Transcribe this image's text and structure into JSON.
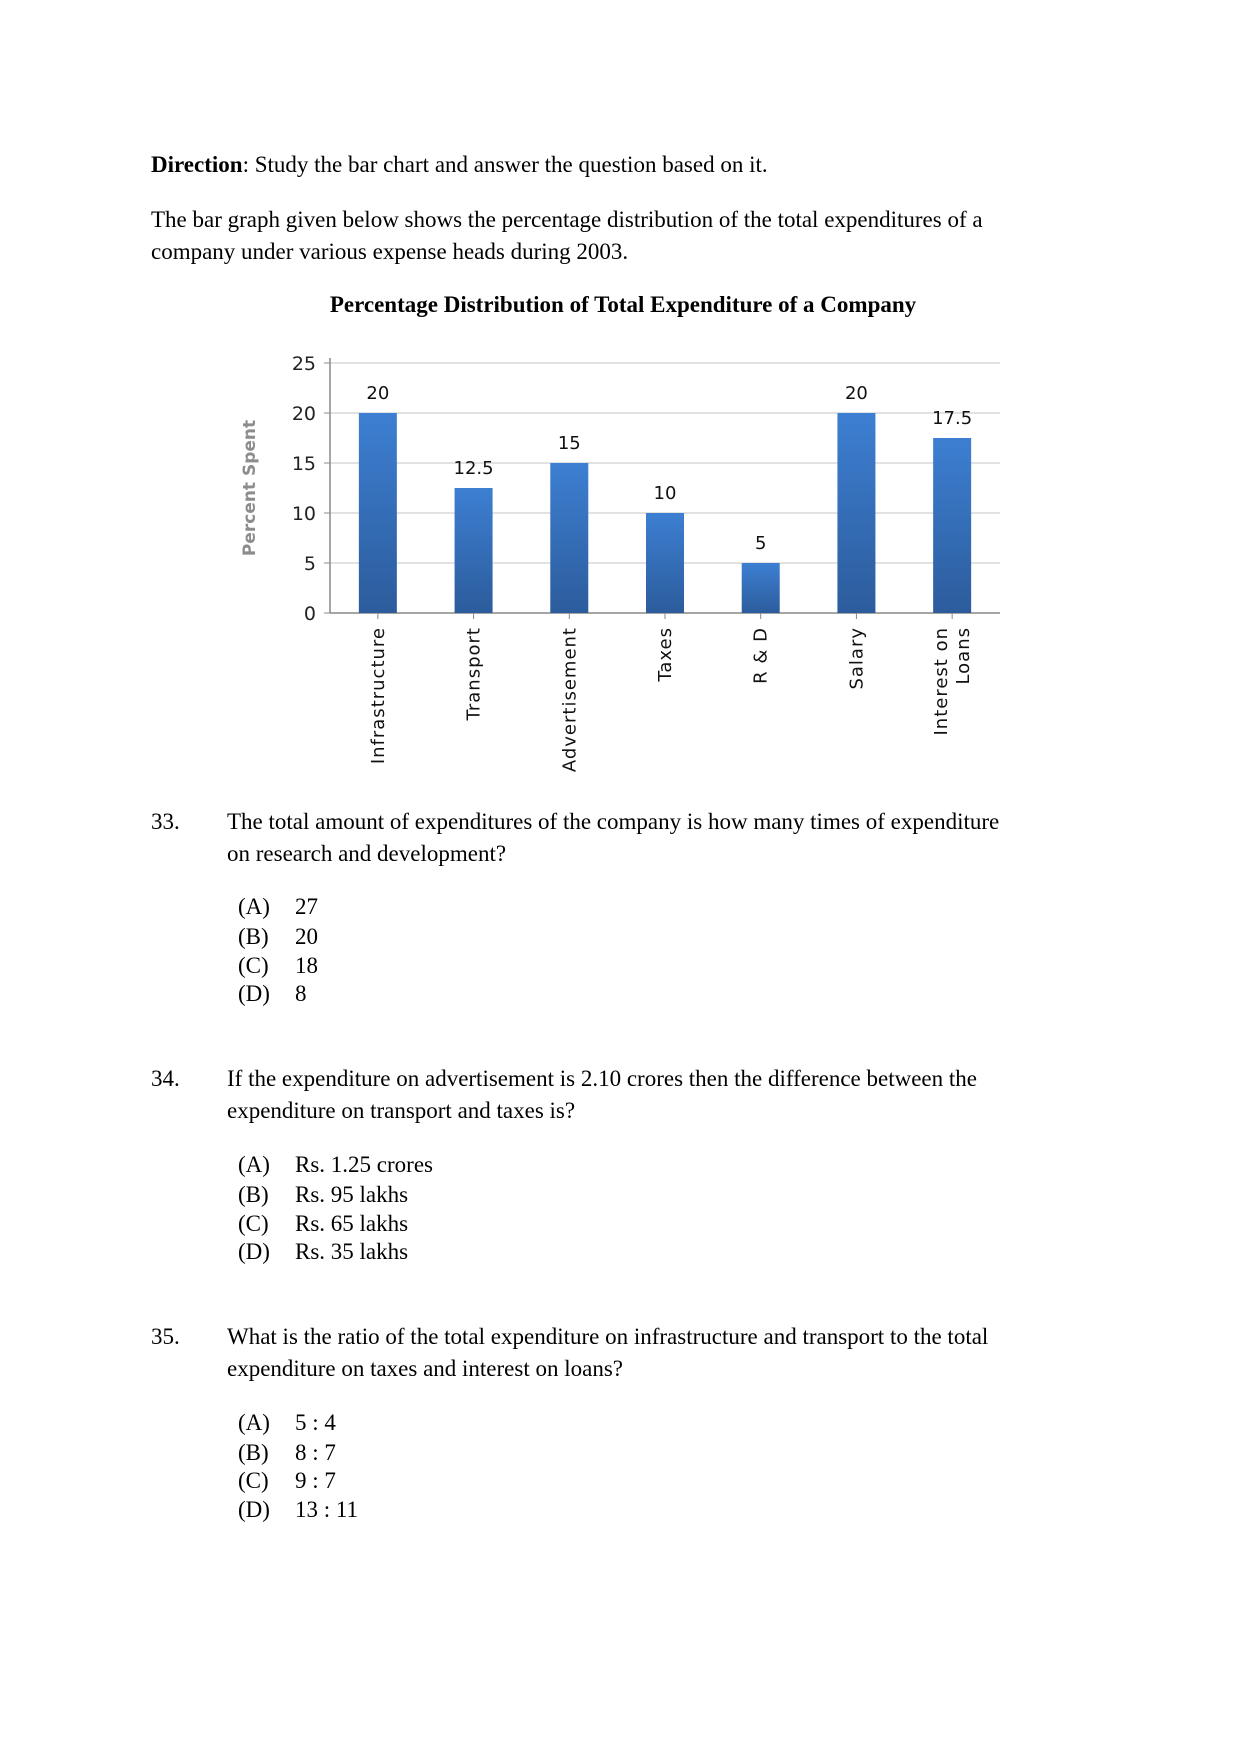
{
  "direction": {
    "label": "Direction",
    "text": ": Study the bar chart and answer the question based on it."
  },
  "intro": [
    "The bar graph given below shows the percentage distribution of the total expenditures of a",
    "company under various expense heads during 2003."
  ],
  "chart_data": {
    "type": "bar",
    "title": "Percentage Distribution of Total Expenditure of a Company",
    "ylabel": "Percent Spent",
    "xlabel": "",
    "categories": [
      "Infrastructure",
      "Transport",
      "Advertisement",
      "Taxes",
      "R & D",
      "Salary",
      "Interest on Loans"
    ],
    "category_lines": [
      [
        "Infrastructure"
      ],
      [
        "Transport"
      ],
      [
        "Advertisement"
      ],
      [
        "Taxes"
      ],
      [
        "R & D"
      ],
      [
        "Salary"
      ],
      [
        "Interest on",
        "Loans"
      ]
    ],
    "values": [
      20,
      12.5,
      15,
      10,
      5,
      20,
      17.5
    ],
    "data_labels": [
      "20",
      "12.5",
      "15",
      "10",
      "5",
      "20",
      "17.5"
    ],
    "ylim": [
      0,
      25
    ],
    "yticks": [
      "0",
      "5",
      "10",
      "15",
      "20",
      "25"
    ],
    "grid": true,
    "bar_color": "#3b7acb"
  },
  "questions": [
    {
      "number": "33.",
      "lines": [
        "The total amount of expenditures of the company is how many times of expenditure",
        "on research and development?"
      ],
      "options": [
        {
          "label": "(A)",
          "text": "27"
        },
        {
          "label": "(B)",
          "text": "20"
        },
        {
          "label": "(C)",
          "text": "18"
        },
        {
          "label": "(D)",
          "text": "8"
        }
      ]
    },
    {
      "number": "34.",
      "lines": [
        "If the expenditure on advertisement is 2.10 crores then the difference between the",
        "expenditure on transport and taxes is?"
      ],
      "options": [
        {
          "label": "(A)",
          "text": "Rs. 1.25 crores"
        },
        {
          "label": "(B)",
          "text": "Rs. 95 lakhs"
        },
        {
          "label": "(C)",
          "text": "Rs. 65 lakhs"
        },
        {
          "label": "(D)",
          "text": "Rs. 35 lakhs"
        }
      ]
    },
    {
      "number": "35.",
      "lines": [
        "What is the ratio of the total expenditure on infrastructure and transport to the total",
        "expenditure on taxes and interest on loans?"
      ],
      "options": [
        {
          "label": "(A)",
          "text": "5 : 4"
        },
        {
          "label": "(B)",
          "text": "8 : 7"
        },
        {
          "label": "(C)",
          "text": "9 : 7"
        },
        {
          "label": "(D)",
          "text": "13 : 11"
        }
      ]
    }
  ]
}
